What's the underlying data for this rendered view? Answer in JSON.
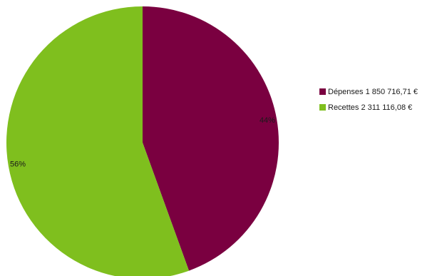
{
  "chart_data": {
    "type": "pie",
    "title": "",
    "slices": [
      {
        "name": "Dépenses",
        "legend_label": "Dépenses 1 850 716,71 €",
        "value": 1850716.71,
        "percent_label": "44%",
        "color": "#7a0040"
      },
      {
        "name": "Recettes",
        "legend_label": "Recettes 2 311 116,08 €",
        "value": 2311116.08,
        "percent_label": "56%",
        "color": "#7fbf1e"
      }
    ],
    "start_angle_deg": 0,
    "direction": "clockwise",
    "legend_position": "right"
  }
}
